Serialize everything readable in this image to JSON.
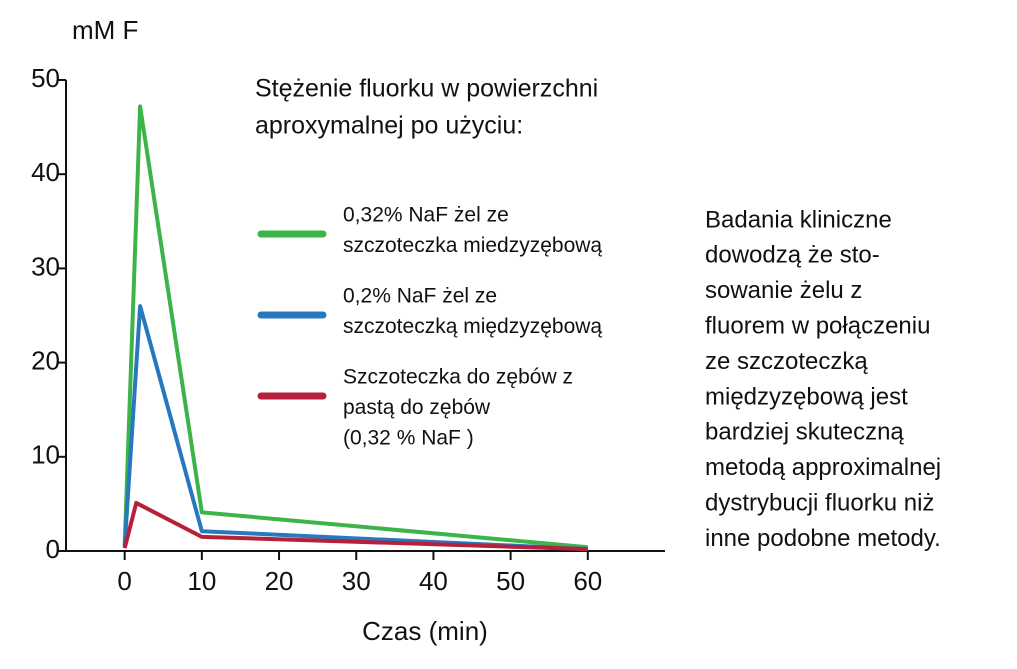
{
  "chart_data": {
    "type": "line",
    "y_label": "mM F",
    "x_label": "Czas (min)",
    "legend_title": [
      "Stężenie fluorku w powierzchni",
      "aproxymalnej po użyciu:"
    ],
    "series": [
      {
        "name": [
          "0,32% NaF żel ze",
          "szczoteczka miedzyzębową"
        ],
        "color": "#3cb44a",
        "x": [
          0,
          2,
          10,
          60
        ],
        "values": [
          0.5,
          47.2,
          4.1,
          0.4
        ]
      },
      {
        "name": [
          "0,2% NaF żel ze",
          "szczoteczką międzyzębową"
        ],
        "color": "#2878c0",
        "x": [
          0,
          2,
          10,
          60
        ],
        "values": [
          0.5,
          26,
          2.1,
          0.2
        ]
      },
      {
        "name": [
          "Szczoteczka do zębów z",
          "pastą do zębów",
          "(0,32 % NaF )"
        ],
        "color": "#b5213a",
        "x": [
          0,
          1.5,
          10,
          60
        ],
        "values": [
          0.3,
          5.1,
          1.5,
          0.2
        ]
      }
    ],
    "xlim": [
      -7.6,
      70
    ],
    "xticks": [
      0,
      10,
      20,
      30,
      40,
      50,
      60
    ],
    "ylim": [
      0,
      50
    ],
    "yticks": [
      0,
      10,
      20,
      30,
      40,
      50
    ],
    "annotation": [
      "Badania kliniczne",
      "dowodzą że sto-",
      "sowanie żelu z",
      "fluorem w połączeniu",
      "ze szczoteczką",
      "międzyzębową jest",
      "bardziej skuteczną",
      "metodą  approximalnej",
      "dystrybucji fluorku niż",
      "inne podobne metody."
    ]
  }
}
